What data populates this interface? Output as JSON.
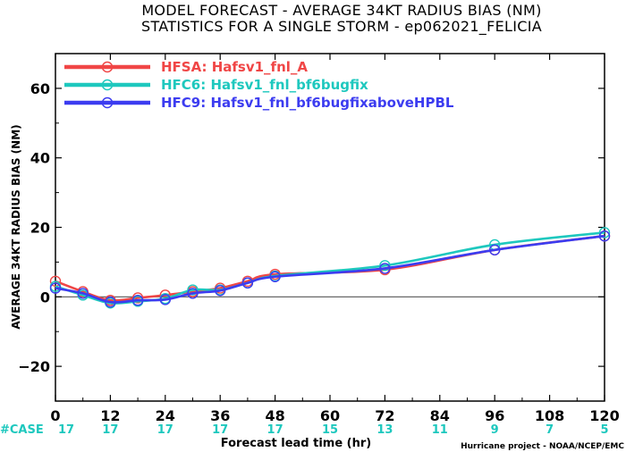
{
  "chart_data": {
    "type": "line",
    "title_line1": "MODEL FORECAST - AVERAGE 34KT RADIUS BIAS (NM)",
    "title_line2": "STATISTICS FOR A SINGLE STORM - ep062021_FELICIA",
    "xlabel": "Forecast lead time (hr)",
    "ylabel": "AVERAGE 34KT RADIUS BIAS (NM)",
    "credit": "Hurricane project - NOAA/NCEP/EMC",
    "xlim": [
      0,
      120
    ],
    "ylim": [
      -30,
      70
    ],
    "x_ticks": [
      0,
      12,
      24,
      36,
      48,
      60,
      72,
      84,
      96,
      108,
      120
    ],
    "y_ticks": [
      -20,
      0,
      20,
      40,
      60
    ],
    "zero_line": true,
    "legend_position": "top-left",
    "series": [
      {
        "name": "HFSA: Hafsv1_fnl_A",
        "color": "#f04646",
        "x": [
          0,
          6,
          12,
          18,
          24,
          30,
          36,
          42,
          48,
          72,
          96,
          120
        ],
        "y": [
          4.5,
          1.5,
          -1.0,
          -0.3,
          0.5,
          1.5,
          2.5,
          4.5,
          6.5,
          7.8,
          13.5,
          17.5
        ]
      },
      {
        "name": "HFC6: Hafsv1_fnl_bf6bugfix",
        "color": "#1ec8be",
        "x": [
          0,
          6,
          12,
          18,
          24,
          30,
          36,
          42,
          48,
          72,
          96,
          120
        ],
        "y": [
          3.0,
          0.5,
          -1.8,
          -1.3,
          -0.5,
          2.0,
          2.0,
          4.0,
          6.0,
          9.0,
          15.0,
          18.5
        ]
      },
      {
        "name": "HFC9: Hafsv1_fnl_bf6bugfixaboveHPBL",
        "color": "#3c3cf0",
        "x": [
          0,
          6,
          12,
          18,
          24,
          30,
          36,
          42,
          48,
          72,
          96,
          120
        ],
        "y": [
          2.5,
          1.0,
          -1.5,
          -1.0,
          -0.8,
          1.0,
          1.8,
          4.0,
          5.8,
          8.2,
          13.5,
          17.5
        ]
      }
    ],
    "case_counts": {
      "label": "#CASE",
      "x": [
        0,
        12,
        24,
        36,
        48,
        60,
        72,
        84,
        96,
        108,
        120
      ],
      "values": [
        "17",
        "17",
        "17",
        "17",
        "17",
        "15",
        "13",
        "11",
        "9",
        "7",
        "5"
      ]
    }
  },
  "colors": {
    "case_label": "#1ec8be",
    "case_values": "#1ec8be",
    "zero_line": "#555555"
  }
}
